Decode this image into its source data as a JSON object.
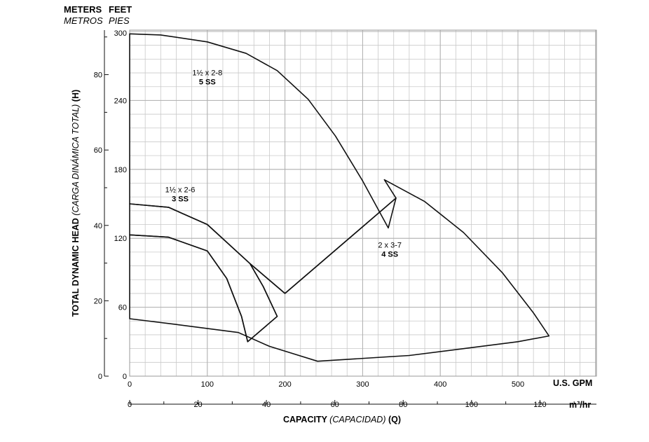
{
  "chart_data": {
    "type": "area",
    "header": {
      "meters": "METERS",
      "feet": "FEET",
      "metros": "METROS",
      "pies": "PIES"
    },
    "ylabel": {
      "bold": "TOTAL DYNAMIC HEAD ",
      "italic": "(CARGA DINÁMICA TOTAL)",
      "tail": " (H)"
    },
    "xlabel": {
      "bold": "CAPACITY ",
      "italic": "(CAPACIDAD)",
      "tail": " (Q)"
    },
    "x_unit_gpm": "U.S. GPM",
    "x_unit_m3": "m³/hr",
    "xlim_gpm": [
      0,
      600
    ],
    "ylim_ft": [
      0,
      300
    ],
    "feet_ticks": [
      0,
      60,
      120,
      180,
      240,
      300
    ],
    "meter_ticks": [
      0,
      20,
      40,
      60,
      80
    ],
    "gpm_ticks": [
      0,
      100,
      200,
      300,
      400,
      500
    ],
    "m3_ticks": [
      0,
      20,
      40,
      60,
      80,
      100,
      120
    ],
    "grid": true,
    "series": [
      {
        "name": "1½ x 2-8",
        "sub": "5 SS",
        "label_at": [
          100,
          262
        ],
        "outline": [
          [
            0,
            298
          ],
          [
            40,
            297
          ],
          [
            100,
            291
          ],
          [
            150,
            281
          ],
          [
            190,
            266
          ],
          [
            230,
            241
          ],
          [
            265,
            209
          ],
          [
            300,
            170
          ],
          [
            333,
            129
          ],
          [
            343,
            155
          ],
          [
            200,
            72
          ],
          [
            155,
            98
          ],
          [
            100,
            132
          ],
          [
            50,
            147
          ],
          [
            0,
            150
          ]
        ]
      },
      {
        "name": "1½ x 2-6",
        "sub": "3 SS",
        "label_at": [
          65,
          160
        ],
        "outline": [
          [
            0,
            150
          ],
          [
            50,
            147
          ],
          [
            100,
            132
          ],
          [
            155,
            98
          ],
          [
            172,
            78
          ],
          [
            190,
            52
          ],
          [
            152,
            30
          ],
          [
            144,
            52
          ],
          [
            125,
            85
          ],
          [
            100,
            109
          ],
          [
            50,
            121
          ],
          [
            0,
            123
          ]
        ]
      },
      {
        "name": "2 x 3-7",
        "sub": "4 SS",
        "label_at": [
          335,
          112
        ],
        "outline": [
          [
            328,
            171
          ],
          [
            380,
            152
          ],
          [
            430,
            125
          ],
          [
            480,
            90
          ],
          [
            520,
            55
          ],
          [
            540,
            35
          ],
          [
            500,
            30
          ],
          [
            360,
            18
          ],
          [
            242,
            13
          ],
          [
            180,
            26
          ],
          [
            140,
            38
          ],
          [
            60,
            45
          ],
          [
            0,
            50
          ],
          [
            0,
            123
          ],
          [
            50,
            121
          ],
          [
            100,
            109
          ],
          [
            125,
            85
          ],
          [
            144,
            52
          ],
          [
            152,
            30
          ],
          [
            190,
            52
          ],
          [
            172,
            78
          ],
          [
            155,
            98
          ],
          [
            200,
            72
          ],
          [
            343,
            155
          ]
        ]
      }
    ]
  }
}
